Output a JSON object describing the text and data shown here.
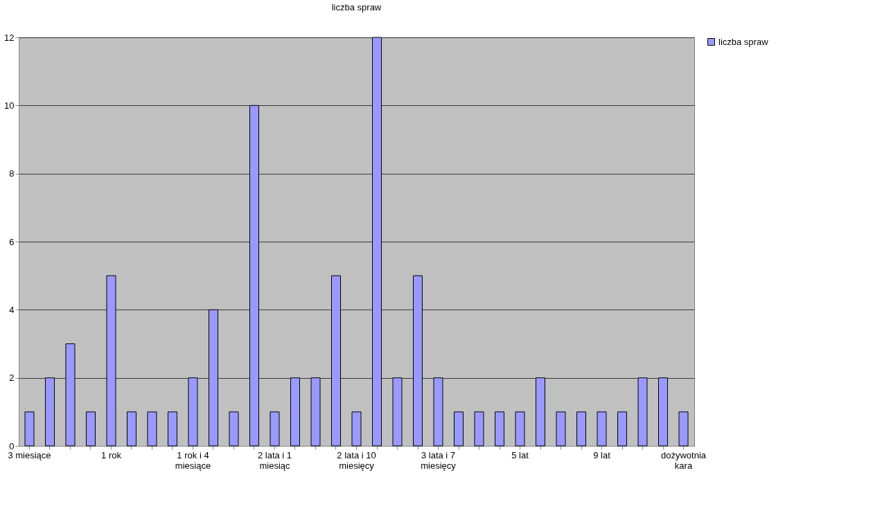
{
  "chart_data": {
    "type": "bar",
    "title": "liczba spraw",
    "categories": [
      "3 miesiące",
      null,
      null,
      null,
      "1 rok",
      null,
      null,
      null,
      "1 rok i 4 miesiące",
      null,
      null,
      null,
      "2 lata i 1 miesiąc",
      null,
      null,
      null,
      "2 lata i 10 miesięcy",
      null,
      null,
      null,
      "3 lata i 7 miesięcy",
      null,
      null,
      null,
      "5 lat",
      null,
      null,
      null,
      "9 lat",
      null,
      null,
      null,
      "dożywotnia kara"
    ],
    "series": [
      {
        "name": "liczba spraw",
        "color": "#9999ff",
        "values": [
          1,
          2,
          3,
          1,
          5,
          1,
          1,
          1,
          2,
          4,
          1,
          10,
          1,
          2,
          2,
          5,
          1,
          12,
          2,
          5,
          2,
          1,
          1,
          1,
          1,
          2,
          1,
          1,
          1,
          1,
          2,
          2,
          1
        ]
      }
    ],
    "ylim": [
      0,
      12
    ],
    "yticks": [
      0,
      2,
      4,
      6,
      8,
      10,
      12
    ],
    "grid": "y",
    "legend": "right"
  }
}
